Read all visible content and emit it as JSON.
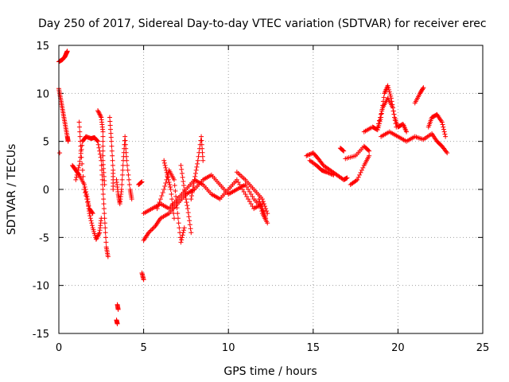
{
  "chart_data": {
    "type": "scatter",
    "title": "Day 250 of 2017, Sidereal Day-to-day VTEC variation (SDTVAR) for receiver erec",
    "xlabel": "GPS time / hours",
    "ylabel": "SDTVAR / TECUs",
    "xlim": [
      0,
      25
    ],
    "ylim": [
      -15,
      15
    ],
    "xticks": [
      "0",
      "5",
      "10",
      "15",
      "20",
      "25"
    ],
    "yticks": [
      "-15",
      "-10",
      "-5",
      "0",
      "5",
      "10",
      "15"
    ],
    "grid": true,
    "marker": "+",
    "color": "#ff0000",
    "series": [
      {
        "name": "SDTVAR",
        "segments": [
          [
            [
              0.0,
              13.3
            ],
            [
              0.2,
              13.5
            ],
            [
              0.35,
              13.8
            ],
            [
              0.45,
              14.2
            ],
            [
              0.5,
              14.4
            ]
          ],
          [
            [
              0.0,
              10.5
            ],
            [
              0.1,
              9.5
            ],
            [
              0.2,
              8.5
            ],
            [
              0.3,
              7.5
            ],
            [
              0.4,
              6.5
            ],
            [
              0.5,
              5.5
            ],
            [
              0.55,
              5.0
            ]
          ],
          [
            [
              0.05,
              3.8
            ]
          ],
          [
            [
              0.8,
              2.5
            ],
            [
              1.0,
              2.0
            ],
            [
              1.2,
              1.5
            ],
            [
              1.5,
              0.5
            ],
            [
              1.7,
              -1.0
            ],
            [
              1.8,
              -2.5
            ],
            [
              2.0,
              -4.0
            ],
            [
              2.2,
              -5.2
            ],
            [
              2.4,
              -4.5
            ],
            [
              2.5,
              -3.0
            ]
          ],
          [
            [
              1.0,
              1.0
            ],
            [
              1.2,
              2.5
            ],
            [
              1.4,
              5.0
            ],
            [
              1.6,
              5.5
            ],
            [
              1.9,
              5.3
            ],
            [
              2.1,
              5.4
            ],
            [
              2.3,
              5.0
            ],
            [
              2.5,
              3.0
            ],
            [
              2.6,
              0.0
            ],
            [
              2.7,
              -3.0
            ],
            [
              2.8,
              -6.0
            ],
            [
              2.9,
              -7.0
            ]
          ],
          [
            [
              1.2,
              7.0
            ],
            [
              1.3,
              4.0
            ],
            [
              1.5,
              0.0
            ],
            [
              1.8,
              -2.0
            ],
            [
              2.0,
              -2.5
            ]
          ],
          [
            [
              2.3,
              8.2
            ],
            [
              2.5,
              7.5
            ],
            [
              2.6,
              6.0
            ],
            [
              2.6,
              3.0
            ],
            [
              2.7,
              0.5
            ]
          ],
          [
            [
              3.0,
              7.5
            ],
            [
              3.1,
              5.0
            ],
            [
              3.2,
              2.0
            ],
            [
              3.2,
              0.0
            ]
          ],
          [
            [
              3.4,
              1.0
            ],
            [
              3.5,
              -0.5
            ],
            [
              3.6,
              -1.5
            ],
            [
              3.7,
              0.0
            ],
            [
              3.8,
              3.0
            ],
            [
              3.9,
              5.5
            ],
            [
              4.0,
              3.0
            ],
            [
              4.2,
              0.0
            ],
            [
              4.3,
              -1.0
            ]
          ],
          [
            [
              3.45,
              -12.0
            ],
            [
              3.5,
              -12.5
            ]
          ],
          [
            [
              3.4,
              -13.6
            ],
            [
              3.45,
              -14.0
            ]
          ],
          [
            [
              4.9,
              -8.7
            ],
            [
              5.0,
              -9.4
            ]
          ],
          [
            [
              4.7,
              0.5
            ],
            [
              4.9,
              0.8
            ]
          ],
          [
            [
              5.0,
              -5.3
            ],
            [
              5.3,
              -4.5
            ],
            [
              5.7,
              -3.8
            ],
            [
              6.0,
              -3.0
            ],
            [
              6.5,
              -2.5
            ],
            [
              7.0,
              -1.5
            ],
            [
              7.5,
              -0.5
            ],
            [
              8.0,
              0.0
            ],
            [
              8.5,
              1.0
            ],
            [
              9.0,
              1.5
            ],
            [
              9.5,
              0.5
            ],
            [
              10.0,
              -0.5
            ],
            [
              10.5,
              0.0
            ],
            [
              11.0,
              0.5
            ],
            [
              11.5,
              -1.0
            ],
            [
              12.0,
              -2.0
            ],
            [
              12.2,
              -3.0
            ]
          ],
          [
            [
              5.0,
              -2.5
            ],
            [
              5.5,
              -2.0
            ],
            [
              6.0,
              -1.5
            ],
            [
              6.5,
              -2.0
            ],
            [
              7.0,
              -1.0
            ],
            [
              7.5,
              0.0
            ],
            [
              8.0,
              1.0
            ],
            [
              8.5,
              0.5
            ],
            [
              9.0,
              -0.5
            ],
            [
              9.5,
              -1.0
            ],
            [
              10.0,
              0.0
            ],
            [
              10.5,
              1.0
            ],
            [
              11.0,
              -0.5
            ],
            [
              11.5,
              -2.0
            ],
            [
              12.0,
              -1.5
            ]
          ],
          [
            [
              5.8,
              -2.0
            ],
            [
              6.2,
              0.0
            ],
            [
              6.5,
              2.0
            ],
            [
              6.8,
              1.0
            ],
            [
              7.0,
              -2.5
            ],
            [
              7.2,
              -5.5
            ],
            [
              7.4,
              -4.0
            ]
          ],
          [
            [
              6.2,
              3.0
            ],
            [
              6.4,
              1.5
            ],
            [
              6.6,
              0.0
            ],
            [
              6.8,
              -3.0
            ]
          ],
          [
            [
              7.8,
              -1.0
            ],
            [
              8.0,
              1.0
            ],
            [
              8.2,
              3.0
            ],
            [
              8.4,
              5.5
            ],
            [
              8.5,
              3.0
            ]
          ],
          [
            [
              7.2,
              2.5
            ],
            [
              7.4,
              0.0
            ],
            [
              7.6,
              -2.0
            ],
            [
              7.8,
              -4.5
            ]
          ],
          [
            [
              10.5,
              1.8
            ],
            [
              11.0,
              1.0
            ],
            [
              11.5,
              0.0
            ],
            [
              12.0,
              -1.0
            ],
            [
              12.3,
              -2.5
            ]
          ],
          [
            [
              11.8,
              -1.0
            ],
            [
              12.0,
              -2.5
            ],
            [
              12.3,
              -3.5
            ]
          ],
          [
            [
              14.6,
              3.5
            ],
            [
              15.0,
              3.8
            ],
            [
              15.3,
              3.2
            ],
            [
              15.6,
              2.5
            ],
            [
              16.0,
              2.0
            ],
            [
              16.4,
              1.5
            ],
            [
              16.8,
              1.0
            ],
            [
              17.0,
              1.2
            ]
          ],
          [
            [
              14.8,
              3.0
            ],
            [
              15.2,
              2.5
            ],
            [
              15.5,
              2.0
            ],
            [
              15.8,
              1.8
            ],
            [
              16.2,
              1.5
            ]
          ],
          [
            [
              16.6,
              4.3
            ],
            [
              16.8,
              4.0
            ]
          ],
          [
            [
              16.9,
              3.2
            ],
            [
              17.5,
              3.5
            ],
            [
              18.0,
              4.5
            ],
            [
              18.3,
              4.0
            ]
          ],
          [
            [
              17.2,
              0.5
            ],
            [
              17.6,
              1.0
            ],
            [
              18.0,
              2.5
            ],
            [
              18.3,
              3.5
            ]
          ],
          [
            [
              18.0,
              6.0
            ],
            [
              18.5,
              6.5
            ],
            [
              18.8,
              6.2
            ],
            [
              19.0,
              7.5
            ],
            [
              19.2,
              10.0
            ],
            [
              19.4,
              10.8
            ],
            [
              19.6,
              9.5
            ],
            [
              19.8,
              7.5
            ],
            [
              20.0,
              6.5
            ],
            [
              20.3,
              6.8
            ],
            [
              20.5,
              6.0
            ]
          ],
          [
            [
              18.8,
              6.5
            ],
            [
              19.1,
              8.5
            ],
            [
              19.4,
              9.5
            ],
            [
              19.7,
              8.5
            ],
            [
              19.9,
              6.5
            ]
          ],
          [
            [
              19.0,
              5.5
            ],
            [
              19.5,
              6.0
            ],
            [
              20.0,
              5.5
            ],
            [
              20.5,
              5.0
            ],
            [
              21.0,
              5.5
            ],
            [
              21.5,
              5.2
            ],
            [
              22.0,
              5.8
            ],
            [
              22.3,
              5.0
            ],
            [
              22.6,
              4.5
            ],
            [
              22.9,
              3.8
            ]
          ],
          [
            [
              21.0,
              9.0
            ],
            [
              21.3,
              10.0
            ],
            [
              21.5,
              10.6
            ]
          ],
          [
            [
              21.8,
              6.5
            ],
            [
              22.0,
              7.5
            ],
            [
              22.3,
              7.8
            ],
            [
              22.6,
              7.0
            ],
            [
              22.8,
              5.5
            ]
          ]
        ]
      }
    ]
  }
}
